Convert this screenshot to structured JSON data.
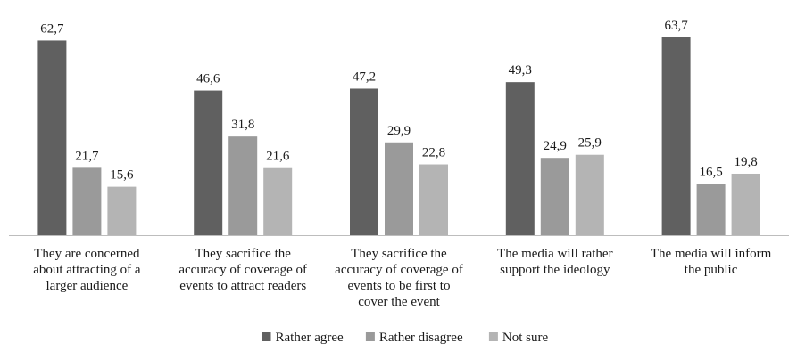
{
  "chart_data": {
    "type": "bar",
    "categories": [
      "They are concerned about attracting of a larger audience",
      "They sacrifice the accuracy of coverage of events to attract readers",
      "They sacrifice the accuracy of coverage of events to be first to cover the event",
      "The media will rather support the ideology",
      "The media will inform the public"
    ],
    "category_label_lines": [
      [
        "They are concerned",
        "about attracting of a",
        "larger audience"
      ],
      [
        "They sacrifice the",
        "accuracy of coverage of",
        "events to attract readers"
      ],
      [
        "They sacrifice the",
        "accuracy of coverage of",
        "events to be first to",
        "cover the event"
      ],
      [
        "The media will rather",
        "support the ideology"
      ],
      [
        "The media will inform",
        "the public"
      ]
    ],
    "series": [
      {
        "name": "Rather agree",
        "values": [
          62.7,
          46.6,
          47.2,
          49.3,
          63.7
        ],
        "labels": [
          "62,7",
          "46,6",
          "47,2",
          "49,3",
          "63,7"
        ],
        "color": "#606060"
      },
      {
        "name": "Rather disagree",
        "values": [
          21.7,
          31.8,
          29.9,
          24.9,
          16.5
        ],
        "labels": [
          "21,7",
          "31,8",
          "29,9",
          "24,9",
          "16,5"
        ],
        "color": "#9a9a9a"
      },
      {
        "name": "Not sure",
        "values": [
          15.6,
          21.6,
          22.8,
          25.9,
          19.8
        ],
        "labels": [
          "15,6",
          "21,6",
          "22,8",
          "25,9",
          "19,8"
        ],
        "color": "#b4b4b4"
      }
    ],
    "ylim": [
      0,
      70
    ],
    "grid": false,
    "legend": "bottom"
  }
}
